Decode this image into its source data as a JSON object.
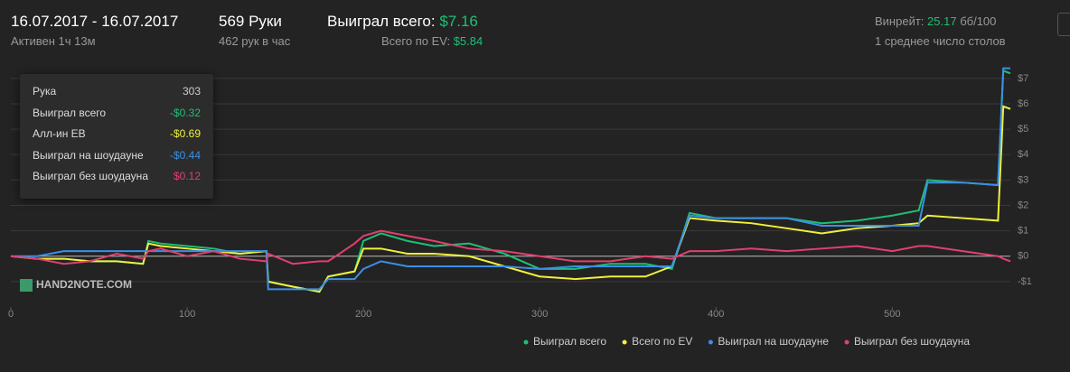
{
  "header": {
    "date_range": "16.07.2017 - 16.07.2017",
    "active": "Активен 1ч 13м",
    "hands": "569 Руки",
    "hands_per_hour": "462 рук в час",
    "won_label": "Выиграл всего:",
    "won_value": "$7.16",
    "ev_label": "Всего по EV:",
    "ev_value": "$5.84",
    "winrate_label": "Винрейт:",
    "winrate_value": "25.17",
    "winrate_unit": "бб/100",
    "tables": "1 среднее число столов"
  },
  "tooltip": {
    "rows": [
      {
        "label": "Рука",
        "value": "303"
      },
      {
        "label": "Выиграл всего",
        "value": "-$0.32"
      },
      {
        "label": "Алл-ин EB",
        "value": "-$0.69"
      },
      {
        "label": "Выиграл на шоудауне",
        "value": "-$0.44"
      },
      {
        "label": "Выиграл без шоудауна",
        "value": "$0.12"
      }
    ]
  },
  "watermark": "HAND2NOTE.COM",
  "chart_data": {
    "type": "line",
    "x": [
      0,
      15,
      30,
      45,
      60,
      75,
      78,
      85,
      100,
      115,
      130,
      145,
      146,
      160,
      175,
      180,
      195,
      200,
      210,
      225,
      240,
      260,
      280,
      300,
      320,
      340,
      360,
      375,
      385,
      400,
      420,
      440,
      460,
      480,
      500,
      515,
      520,
      540,
      560,
      563,
      567
    ],
    "series": [
      {
        "name": "Выиграл всего",
        "color": "#1fbf75",
        "values": [
          0,
          -0.1,
          -0.1,
          -0.2,
          -0.2,
          -0.3,
          0.6,
          0.5,
          0.4,
          0.3,
          0.1,
          0.2,
          -1.0,
          -1.2,
          -1.4,
          -0.8,
          -0.6,
          0.6,
          0.9,
          0.6,
          0.4,
          0.5,
          0.1,
          -0.5,
          -0.5,
          -0.3,
          -0.3,
          -0.5,
          1.7,
          1.5,
          1.5,
          1.5,
          1.3,
          1.4,
          1.6,
          1.8,
          3.0,
          2.9,
          2.8,
          7.3,
          7.2
        ]
      },
      {
        "name": "Всего по EV",
        "color": "#f0f03c",
        "values": [
          0,
          -0.1,
          -0.1,
          -0.2,
          -0.2,
          -0.3,
          0.5,
          0.4,
          0.3,
          0.2,
          0.1,
          0.2,
          -1.0,
          -1.2,
          -1.4,
          -0.8,
          -0.6,
          0.3,
          0.3,
          0.1,
          0.1,
          0.0,
          -0.4,
          -0.8,
          -0.9,
          -0.8,
          -0.8,
          -0.4,
          1.5,
          1.4,
          1.3,
          1.1,
          0.9,
          1.1,
          1.2,
          1.3,
          1.6,
          1.5,
          1.4,
          5.9,
          5.8
        ]
      },
      {
        "name": "Выиграл на шоудауне",
        "color": "#3c8fe6",
        "values": [
          0,
          0,
          0.2,
          0.2,
          0.2,
          0.2,
          0.2,
          0.2,
          0.2,
          0.2,
          0.2,
          0.2,
          -1.3,
          -1.3,
          -1.3,
          -0.9,
          -0.9,
          -0.5,
          -0.2,
          -0.4,
          -0.4,
          -0.4,
          -0.4,
          -0.5,
          -0.4,
          -0.4,
          -0.4,
          -0.4,
          1.6,
          1.5,
          1.5,
          1.5,
          1.2,
          1.2,
          1.2,
          1.2,
          2.9,
          2.9,
          2.8,
          7.4,
          7.4
        ]
      },
      {
        "name": "Выиграл без шоудауна",
        "color": "#e0406e",
        "values": [
          0,
          -0.1,
          -0.3,
          -0.2,
          0.1,
          -0.1,
          0.2,
          0.3,
          0.0,
          0.2,
          -0.1,
          -0.2,
          0.1,
          -0.3,
          -0.2,
          -0.2,
          0.5,
          0.8,
          1.0,
          0.8,
          0.6,
          0.3,
          0.2,
          0.0,
          -0.2,
          -0.2,
          0.0,
          -0.1,
          0.2,
          0.2,
          0.3,
          0.2,
          0.3,
          0.4,
          0.2,
          0.4,
          0.4,
          0.2,
          0.0,
          -0.1,
          -0.2
        ]
      }
    ],
    "xlim": [
      0,
      567
    ],
    "xticks": [
      0,
      100,
      200,
      300,
      400,
      500
    ],
    "ylim": [
      -2,
      7.6
    ],
    "yticks": [
      {
        "value": -1,
        "label": "-$1"
      },
      {
        "value": 0,
        "label": "$0"
      },
      {
        "value": 1,
        "label": "$1"
      },
      {
        "value": 2,
        "label": "$2"
      },
      {
        "value": 3,
        "label": "$3"
      },
      {
        "value": 4,
        "label": "$4"
      },
      {
        "value": 5,
        "label": "$5"
      },
      {
        "value": 6,
        "label": "$6"
      },
      {
        "value": 7,
        "label": "$7"
      }
    ],
    "grid": true
  }
}
